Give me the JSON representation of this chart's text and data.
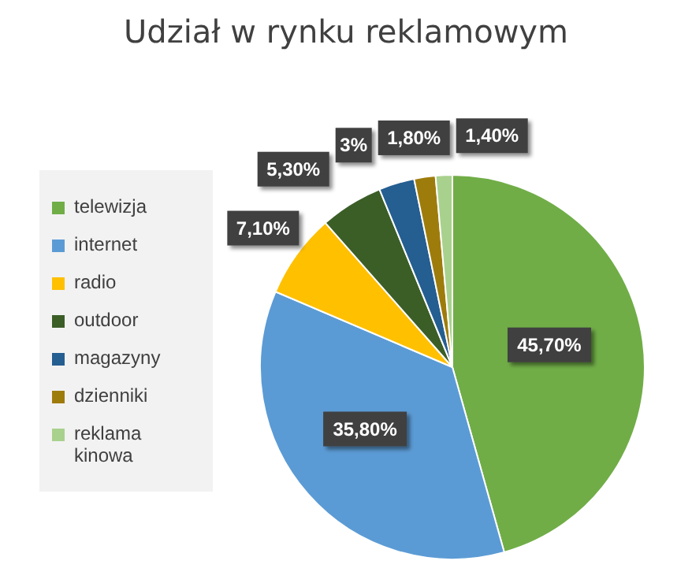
{
  "chart_data": {
    "type": "pie",
    "title": "Udział w rynku reklamowym",
    "categories": [
      "telewizja",
      "internet",
      "radio",
      "outdoor",
      "magazyny",
      "dzienniki",
      "reklama kinowa"
    ],
    "values": [
      45.7,
      35.8,
      7.1,
      5.3,
      3,
      1.8,
      1.4
    ],
    "value_labels": [
      "45,70%",
      "35,80%",
      "7,10%",
      "5,30%",
      "3%",
      "1,80%",
      "1,40%"
    ],
    "colors": [
      "#70ad47",
      "#5b9bd5",
      "#ffc000",
      "#3b5e27",
      "#255e91",
      "#9e7c0c",
      "#a9d18e"
    ],
    "legend": "left"
  }
}
